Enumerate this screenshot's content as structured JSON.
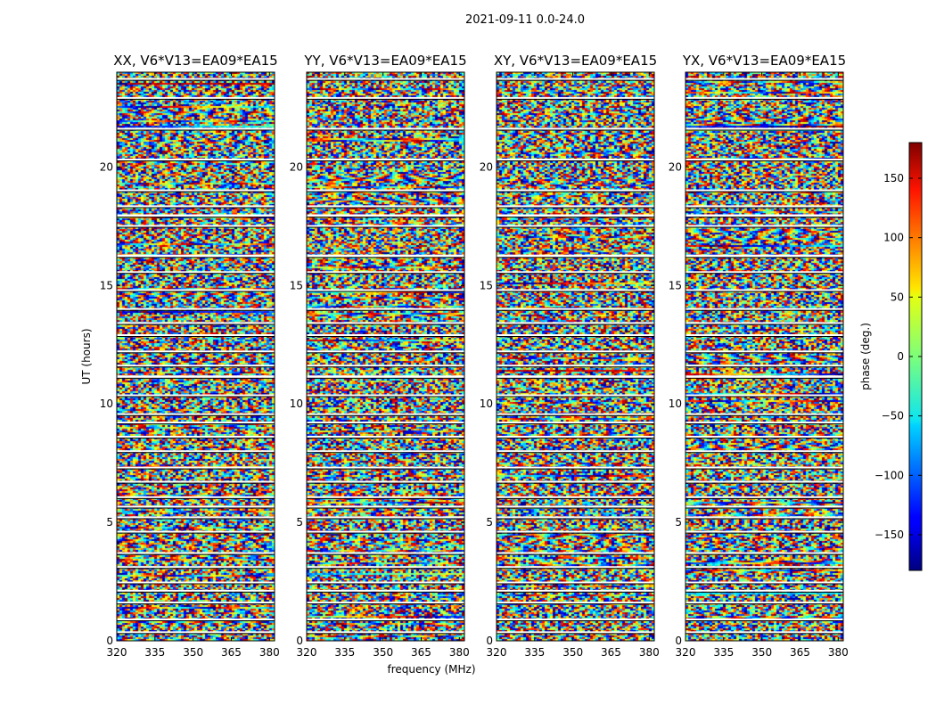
{
  "chart_data": {
    "type": "heatmap",
    "title": "2021-09-11 0.0-24.0",
    "xlabel": "frequency (MHz)",
    "ylabel": "UT (hours)",
    "xlim": [
      320,
      382
    ],
    "ylim": [
      0,
      24
    ],
    "x_ticks": [
      320,
      335,
      350,
      365,
      380
    ],
    "y_ticks": [
      0,
      5,
      10,
      15,
      20
    ],
    "panels": [
      {
        "title": "XX, V6*V13=EA09*EA15",
        "polarization": "XX"
      },
      {
        "title": "YY, V6*V13=EA09*EA15",
        "polarization": "YY"
      },
      {
        "title": "XY, V6*V13=EA09*EA15",
        "polarization": "XY"
      },
      {
        "title": "YX, V6*V13=EA09*EA15",
        "polarization": "YX"
      }
    ],
    "colorbar": {
      "label": "phase (deg.)",
      "range": [
        -180,
        180
      ],
      "ticks": [
        150,
        100,
        50,
        0,
        -50,
        -100,
        -150
      ],
      "tick_labels": [
        "150",
        "100",
        "50",
        "0",
        "−50",
        "−100",
        "−150"
      ],
      "colormap": "jet"
    },
    "flagged_gaps_ut_hours": [
      [
        23.7,
        23.75
      ],
      [
        22.9,
        22.95
      ],
      [
        21.6,
        21.65
      ],
      [
        20.3,
        20.35
      ],
      [
        19.0,
        19.05
      ],
      [
        18.3,
        18.38
      ],
      [
        17.9,
        18.0
      ],
      [
        17.5,
        17.55
      ],
      [
        16.2,
        16.3
      ],
      [
        15.55,
        15.6
      ],
      [
        14.8,
        14.84
      ],
      [
        14.0,
        14.04
      ],
      [
        13.4,
        13.45
      ],
      [
        12.9,
        12.94
      ],
      [
        12.2,
        12.25
      ],
      [
        11.6,
        11.65
      ],
      [
        11.1,
        11.2
      ],
      [
        10.35,
        10.4
      ],
      [
        9.55,
        9.6
      ],
      [
        9.2,
        9.25
      ],
      [
        8.6,
        8.65
      ],
      [
        8.0,
        8.04
      ],
      [
        7.3,
        7.35
      ],
      [
        6.7,
        6.75
      ],
      [
        6.05,
        6.1
      ],
      [
        5.65,
        5.7
      ],
      [
        5.2,
        5.25
      ],
      [
        4.6,
        4.64
      ],
      [
        3.7,
        3.74
      ],
      [
        3.1,
        3.15
      ],
      [
        2.45,
        2.5
      ],
      [
        2.1,
        2.15
      ],
      [
        1.6,
        1.65
      ],
      [
        0.9,
        0.94
      ],
      [
        0.35,
        0.4
      ]
    ]
  }
}
